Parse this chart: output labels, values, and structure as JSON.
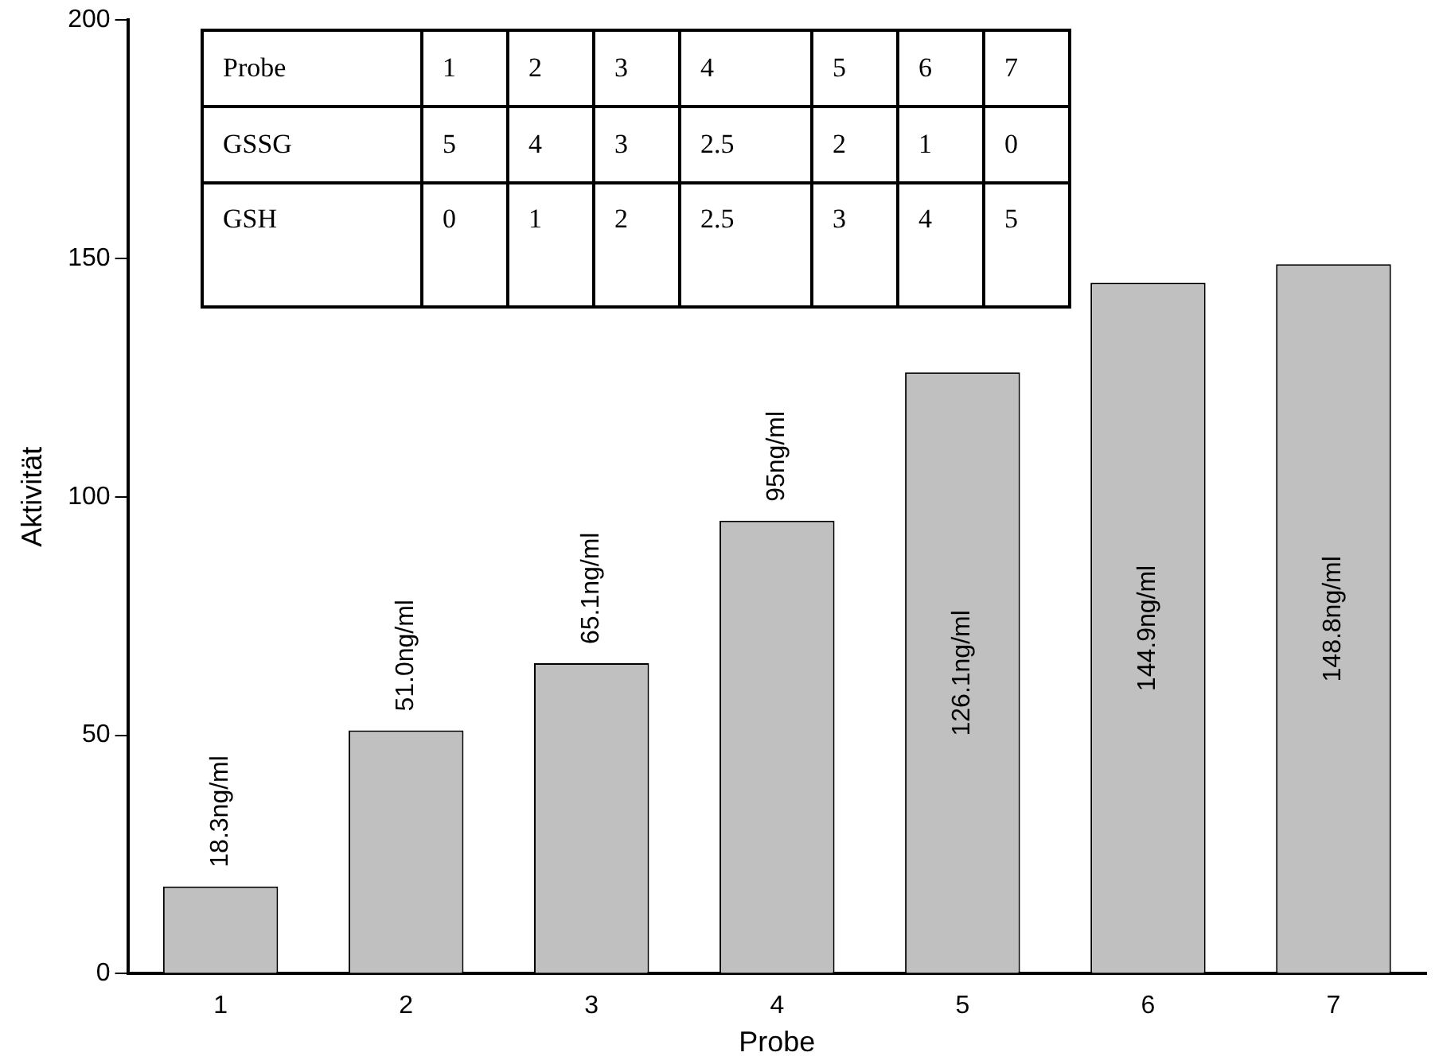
{
  "chart_data": {
    "type": "bar",
    "xlabel": "Probe",
    "ylabel": "Aktivität",
    "categories": [
      "1",
      "2",
      "3",
      "4",
      "5",
      "6",
      "7"
    ],
    "values": [
      18.3,
      51.0,
      65.1,
      95,
      126.1,
      144.9,
      148.8
    ],
    "value_labels": [
      "18.3ng/ml",
      "51.0ng/ml",
      "65.1ng/ml",
      "95ng/ml",
      "126.1ng/ml",
      "144.9ng/ml",
      "148.8ng/ml"
    ],
    "color": "#c0c0c0",
    "ylim": [
      0,
      200
    ],
    "yticks": [
      0,
      50,
      100,
      150,
      200
    ],
    "grid": false,
    "legend": false,
    "annotations": [
      "Probe",
      "1",
      "2",
      "3",
      "4",
      "5",
      "6",
      "7",
      "GSSG",
      "5",
      "4",
      "3",
      "2.5",
      "2",
      "1",
      "0",
      "GSH",
      "0",
      "1",
      "2",
      "2.5",
      "3",
      "4",
      "5"
    ]
  }
}
